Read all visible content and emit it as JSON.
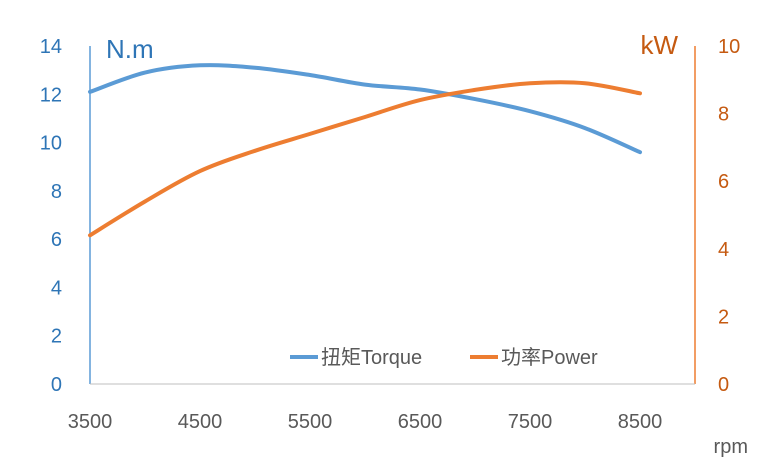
{
  "chart_data": {
    "type": "line",
    "x": [
      3500,
      4000,
      4500,
      5000,
      5500,
      6000,
      6500,
      7000,
      7500,
      8000,
      8500
    ],
    "x_ticks": [
      3500,
      4500,
      5500,
      6500,
      7500,
      8500
    ],
    "xlim": [
      3500,
      9000
    ],
    "xlabel": "rpm",
    "y_left": {
      "label": "N.m",
      "ylim": [
        0,
        14
      ],
      "ticks": [
        0,
        2,
        4,
        6,
        8,
        10,
        12,
        14
      ]
    },
    "y_right": {
      "label": "kW",
      "ylim": [
        0,
        10
      ],
      "ticks": [
        0,
        2,
        4,
        6,
        8,
        10
      ]
    },
    "series": [
      {
        "name": "扭矩Torque",
        "axis": "left",
        "color": "#5b9bd5",
        "values": [
          12.1,
          12.9,
          13.2,
          13.1,
          12.8,
          12.4,
          12.2,
          11.8,
          11.3,
          10.6,
          9.6
        ]
      },
      {
        "name": "功率Power",
        "axis": "right",
        "color": "#ed7d31",
        "values": [
          4.4,
          5.4,
          6.3,
          6.9,
          7.4,
          7.9,
          8.4,
          8.7,
          8.9,
          8.9,
          8.6
        ]
      }
    ],
    "grid": false,
    "legend_position": "bottom-right",
    "colors": {
      "left_axis": "#2e75b6",
      "right_axis": "#c55a11",
      "x_axis": "#595959"
    }
  }
}
